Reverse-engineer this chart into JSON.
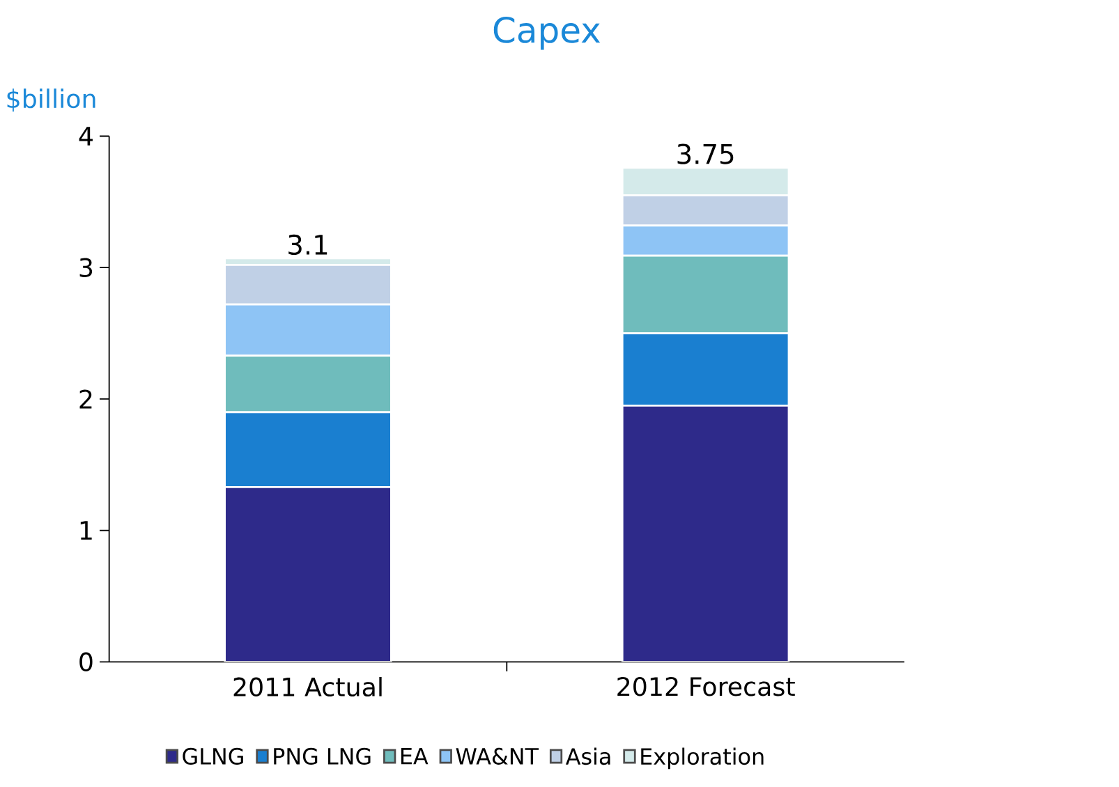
{
  "chart_data": {
    "type": "bar",
    "title": "Capex",
    "ylabel": "$billion",
    "categories": [
      "2011 Actual",
      "2012 Forecast"
    ],
    "stacked": true,
    "series": [
      {
        "name": "GLNG",
        "color": "#2e2a8a",
        "values": [
          1.33,
          1.95
        ]
      },
      {
        "name": "PNG LNG",
        "color": "#1a7fd0",
        "values": [
          0.57,
          0.55
        ]
      },
      {
        "name": "EA",
        "color": "#6fbcbc",
        "values": [
          0.43,
          0.59
        ]
      },
      {
        "name": "WA&NT",
        "color": "#8ec4f5",
        "values": [
          0.39,
          0.23
        ]
      },
      {
        "name": "Asia",
        "color": "#c0d0e6",
        "values": [
          0.3,
          0.23
        ]
      },
      {
        "name": "Exploration",
        "color": "#d4eaea",
        "values": [
          0.05,
          0.21
        ]
      }
    ],
    "totals": [
      "3.1",
      "3.75"
    ],
    "ylim": [
      0,
      4
    ],
    "yticks": [
      0,
      1,
      2,
      3,
      4
    ],
    "legend": "bottom"
  }
}
